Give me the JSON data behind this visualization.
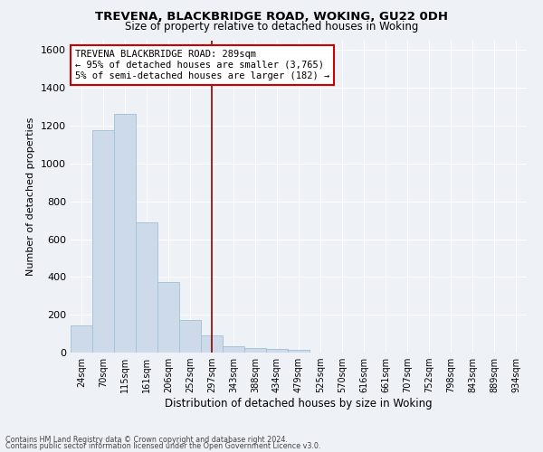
{
  "title1": "TREVENA, BLACKBRIDGE ROAD, WOKING, GU22 0DH",
  "title2": "Size of property relative to detached houses in Woking",
  "xlabel": "Distribution of detached houses by size in Woking",
  "ylabel": "Number of detached properties",
  "bar_color": "#ccdaea",
  "bar_edge_color": "#a8c4d8",
  "vline_color": "#8b0000",
  "categories": [
    "24sqm",
    "70sqm",
    "115sqm",
    "161sqm",
    "206sqm",
    "252sqm",
    "297sqm",
    "343sqm",
    "388sqm",
    "434sqm",
    "479sqm",
    "525sqm",
    "570sqm",
    "616sqm",
    "661sqm",
    "707sqm",
    "752sqm",
    "798sqm",
    "843sqm",
    "889sqm",
    "934sqm"
  ],
  "values": [
    145,
    1175,
    1265,
    690,
    375,
    170,
    90,
    35,
    25,
    20,
    15,
    0,
    0,
    0,
    0,
    0,
    0,
    0,
    0,
    0,
    0
  ],
  "ylim": [
    0,
    1650
  ],
  "yticks": [
    0,
    200,
    400,
    600,
    800,
    1000,
    1200,
    1400,
    1600
  ],
  "annotation_text": "TREVENA BLACKBRIDGE ROAD: 289sqm\n← 95% of detached houses are smaller (3,765)\n5% of semi-detached houses are larger (182) →",
  "annotation_box_color": "#ffffff",
  "annotation_box_edge": "#cc0000",
  "footer1": "Contains HM Land Registry data © Crown copyright and database right 2024.",
  "footer2": "Contains public sector information licensed under the Open Government Licence v3.0.",
  "background_color": "#eef2f7",
  "grid_color": "#ffffff"
}
